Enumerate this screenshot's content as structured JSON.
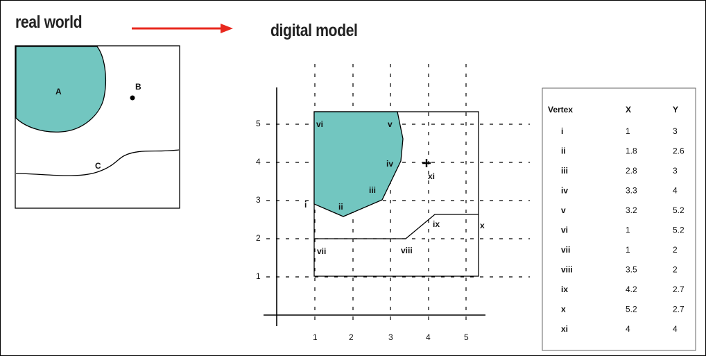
{
  "headings": {
    "real_world": "real world",
    "digital_model": "digital model"
  },
  "real_world_labels": {
    "a": "A",
    "b": "B",
    "c": "C"
  },
  "axis": {
    "x_ticks": [
      "1",
      "2",
      "3",
      "4",
      "5"
    ],
    "y_ticks": [
      "1",
      "2",
      "3",
      "4",
      "5"
    ]
  },
  "vertex_labels": [
    "i",
    "ii",
    "iii",
    "iv",
    "v",
    "vi",
    "vii",
    "viii",
    "ix",
    "x",
    "xi"
  ],
  "table": {
    "headers": [
      "Vertex",
      "X",
      "Y"
    ],
    "rows": [
      [
        "i",
        "1",
        "3"
      ],
      [
        "ii",
        "1.8",
        "2.6"
      ],
      [
        "iii",
        "2.8",
        "3"
      ],
      [
        "iv",
        "3.3",
        "4"
      ],
      [
        "v",
        "3.2",
        "5.2"
      ],
      [
        "vi",
        "1",
        "5.2"
      ],
      [
        "vii",
        "1",
        "2"
      ],
      [
        "viii",
        "3.5",
        "2"
      ],
      [
        "ix",
        "4.2",
        "2.7"
      ],
      [
        "x",
        "5.2",
        "2.7"
      ],
      [
        "xi",
        "4",
        "4"
      ]
    ]
  },
  "colors": {
    "fill": "#72c6c0",
    "arrow": "#e8281e"
  }
}
